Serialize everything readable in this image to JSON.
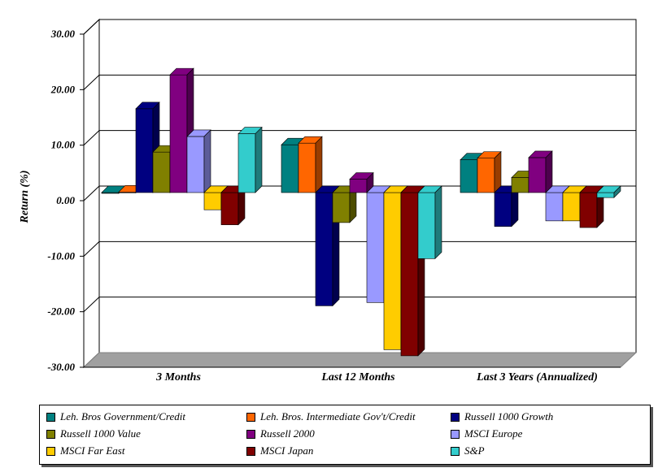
{
  "chart_data": {
    "type": "bar",
    "ylabel": "Return (%)",
    "xlabel": "",
    "ylim": [
      -30,
      30
    ],
    "yticks": [
      "30.00",
      "20.00",
      "10.00",
      "0.00",
      "-10.00",
      "-20.00",
      "-30.00"
    ],
    "grid": true,
    "legend_position": "bottom",
    "categories": [
      "3 Months",
      "Last 12 Months",
      "Last 3 Years (Annualized)"
    ],
    "series": [
      {
        "name": "Leh. Bros Government/Credit",
        "color": "#008080",
        "values": [
          0.0,
          8.6,
          5.9
        ]
      },
      {
        "name": "Leh. Bros. Intermediate Gov't/Credit",
        "color": "#FF6600",
        "values": [
          0.1,
          8.9,
          6.2
        ]
      },
      {
        "name": "Russell 1000 Growth",
        "color": "#000080",
        "values": [
          15.1,
          -20.4,
          -6.1
        ]
      },
      {
        "name": "Russell 1000 Value",
        "color": "#808000",
        "values": [
          7.3,
          -5.4,
          2.7
        ]
      },
      {
        "name": "Russell 2000",
        "color": "#800080",
        "values": [
          21.2,
          2.4,
          6.3
        ]
      },
      {
        "name": "MSCI Europe",
        "color": "#9999FF",
        "values": [
          10.1,
          -19.8,
          -5.1
        ]
      },
      {
        "name": "MSCI Far East",
        "color": "#FFCC00",
        "values": [
          -3.1,
          -28.3,
          -5.1
        ]
      },
      {
        "name": "MSCI Japan",
        "color": "#800000",
        "values": [
          -5.8,
          -29.4,
          -6.3
        ]
      },
      {
        "name": "S&P",
        "color": "#33CCCC",
        "values": [
          10.6,
          -11.9,
          -0.9
        ]
      }
    ]
  }
}
